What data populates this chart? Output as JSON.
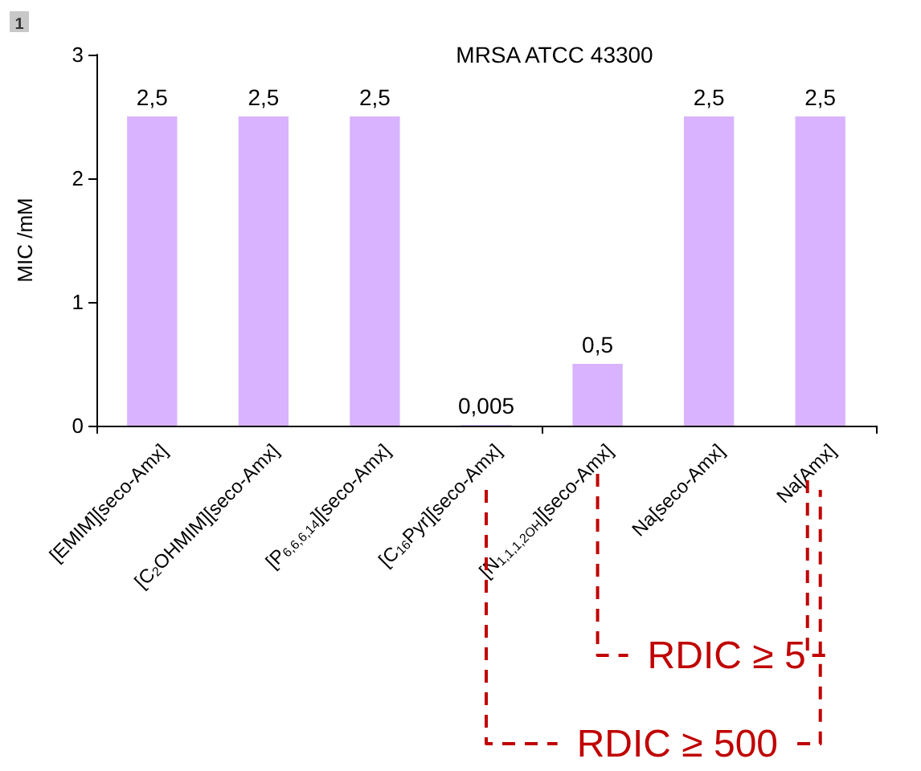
{
  "chart_data": {
    "type": "bar",
    "title": "MRSA ATCC 43300",
    "ylabel": "MIC /mM",
    "categories": [
      "[EMIM][seco-Amx]",
      "[C$_{2}$OHMIM][seco-Amx]",
      "[P$_{6,6,6,14}$][seco-Amx]",
      "[C$_{16}$Pyr][seco-Amx]",
      "[N$_{1,1,1,2OH}$][seco-Amx]",
      "Na[seco-Amx]",
      "Na[Amx]"
    ],
    "values": [
      2.5,
      2.5,
      2.5,
      0.005,
      0.5,
      2.5,
      2.5
    ],
    "value_labels": [
      "2,5",
      "2,5",
      "2,5",
      "0,005",
      "0,5",
      "2,5",
      "2,5"
    ],
    "color": "#d9b3ff",
    "ylim": [
      0,
      3
    ],
    "yticks": [
      0,
      1,
      2,
      3
    ],
    "grid": false,
    "annotations": [
      "1",
      "RDIC ≥ 500",
      "RDIC ≥ 5"
    ]
  }
}
